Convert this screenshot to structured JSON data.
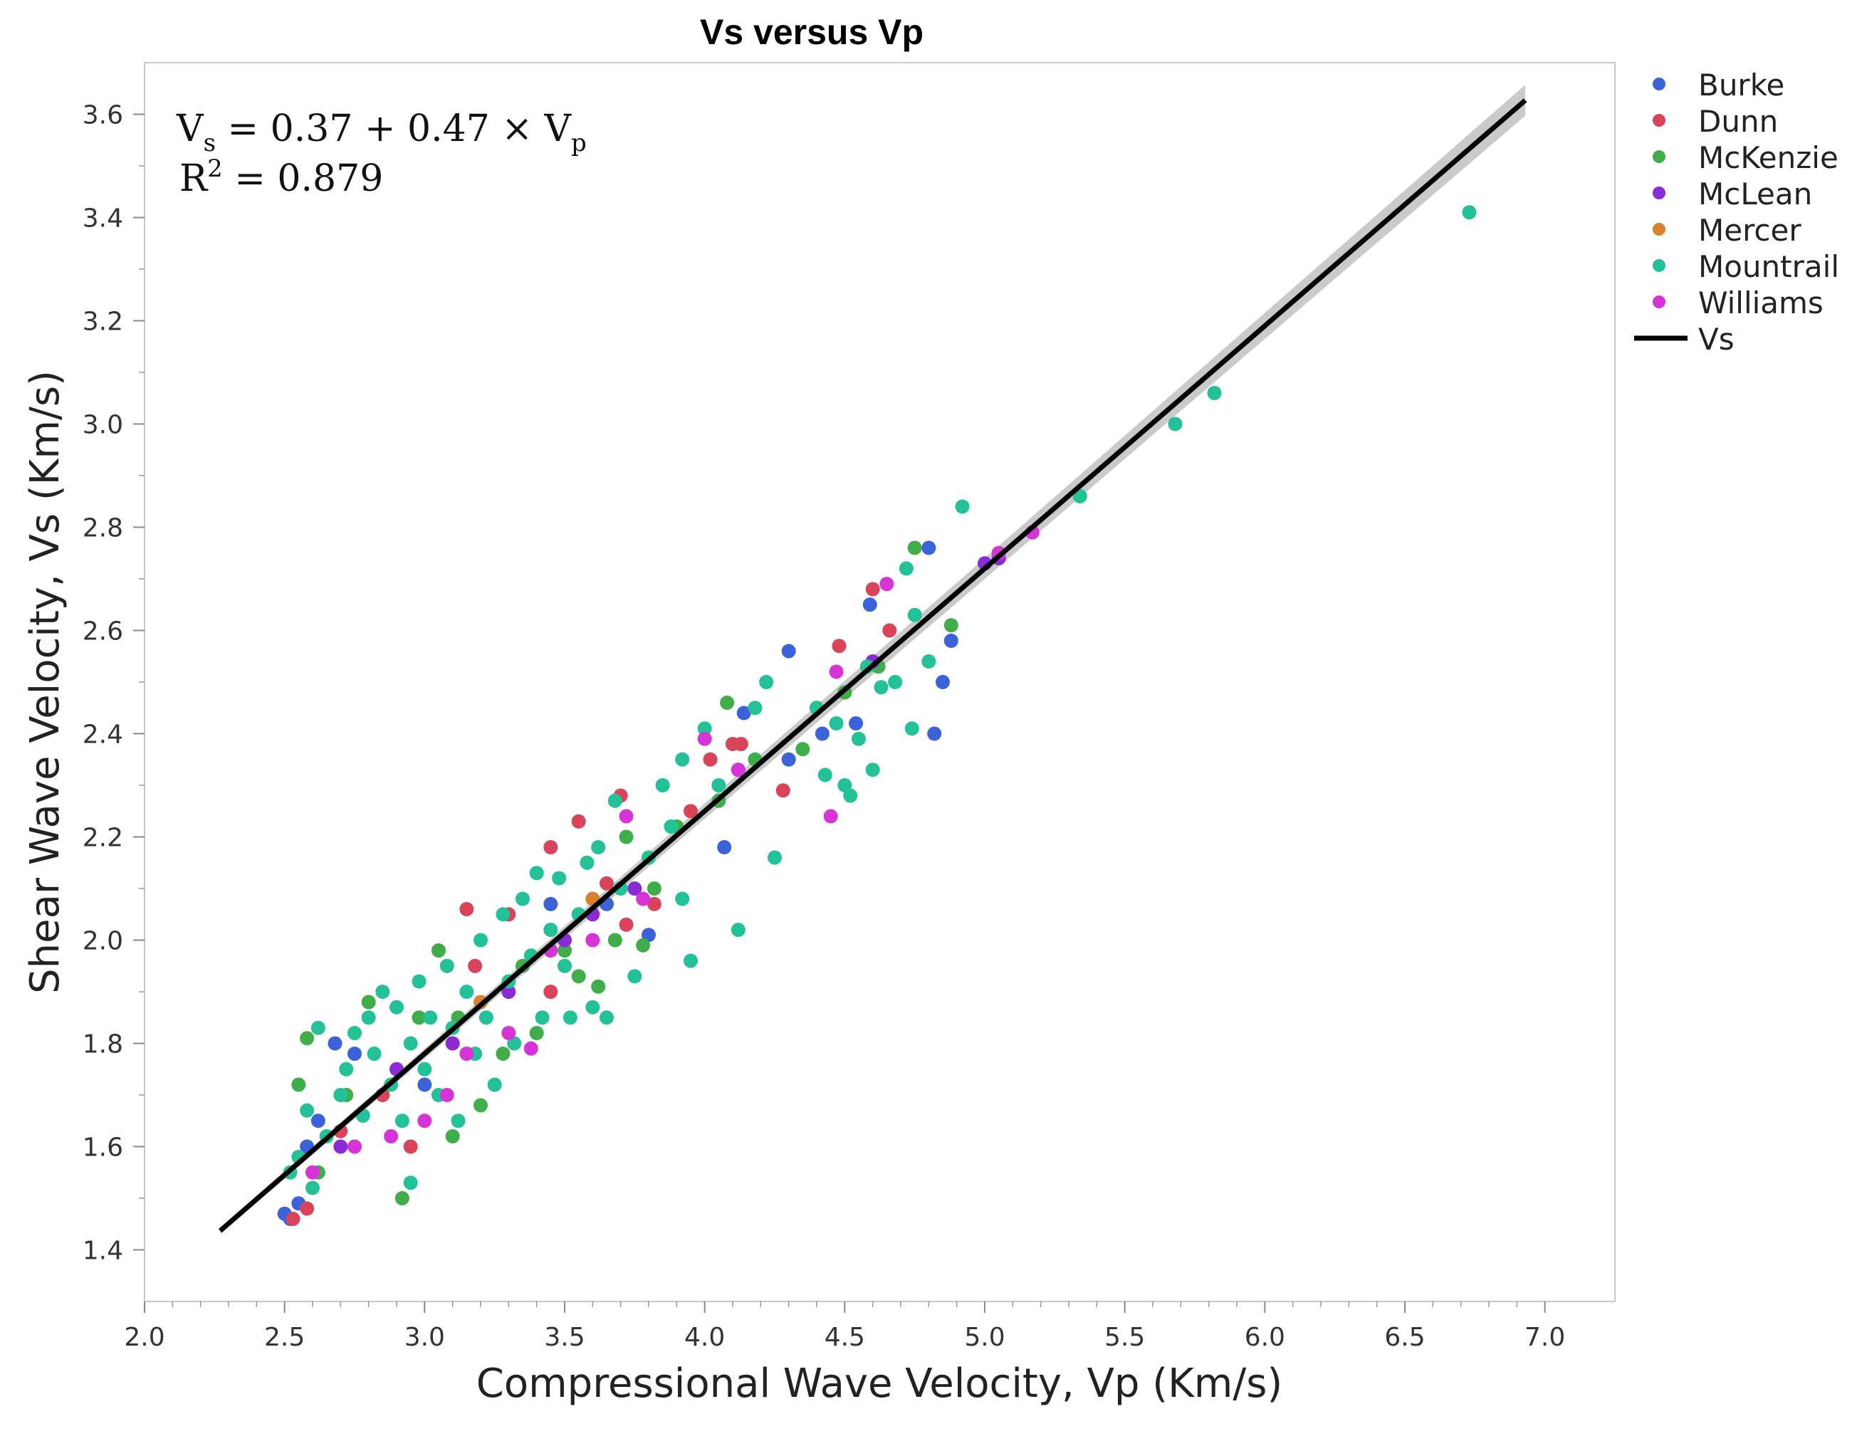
{
  "chart_data": {
    "type": "scatter",
    "title": "Vs versus Vp",
    "xlabel": "Compressional Wave Velocity, Vp (Km/s)",
    "ylabel": "Shear Wave Velocity, Vs (Km/s)",
    "xlim": [
      2.0,
      7.25
    ],
    "ylim": [
      1.3,
      3.7
    ],
    "xticks": [
      "2.0",
      "2.5",
      "3.0",
      "3.5",
      "4.0",
      "4.5",
      "5.0",
      "5.5",
      "6.0",
      "6.5",
      "7.0"
    ],
    "yticks": [
      "1.4",
      "1.6",
      "1.8",
      "2.0",
      "2.2",
      "2.4",
      "2.6",
      "2.8",
      "3.0",
      "3.2",
      "3.4",
      "3.6"
    ],
    "grid": false,
    "legend_position": "right",
    "equation": {
      "line1_base": "V",
      "line1_sub": "s",
      "line1_mid": " = 0.37 + 0.47 × V",
      "line1_sub2": "p",
      "line2_base": "R",
      "line2_sup": "2",
      "line2_rest": " = 0.879"
    },
    "fit": {
      "name": "Vs",
      "intercept": 0.37,
      "slope": 0.47,
      "r2": 0.879,
      "x_range": [
        2.27,
        6.93
      ],
      "color": "#000000",
      "band_color": "#bdbdbd"
    },
    "series": [
      {
        "name": "Burke",
        "color": "#3b62d9",
        "points": [
          [
            2.5,
            1.47
          ],
          [
            2.52,
            1.46
          ],
          [
            2.55,
            1.49
          ],
          [
            2.58,
            1.6
          ],
          [
            2.62,
            1.65
          ],
          [
            2.68,
            1.8
          ],
          [
            2.75,
            1.78
          ],
          [
            3.0,
            1.72
          ],
          [
            3.45,
            2.07
          ],
          [
            3.65,
            2.07
          ],
          [
            3.8,
            2.01
          ],
          [
            4.07,
            2.18
          ],
          [
            4.14,
            2.44
          ],
          [
            4.3,
            2.35
          ],
          [
            4.3,
            2.56
          ],
          [
            4.42,
            2.4
          ],
          [
            4.54,
            2.42
          ],
          [
            4.59,
            2.65
          ],
          [
            4.8,
            2.76
          ],
          [
            4.82,
            2.4
          ],
          [
            4.85,
            2.5
          ],
          [
            4.88,
            2.58
          ]
        ]
      },
      {
        "name": "Dunn",
        "color": "#d9445a",
        "points": [
          [
            2.53,
            1.46
          ],
          [
            2.58,
            1.48
          ],
          [
            2.7,
            1.63
          ],
          [
            2.85,
            1.7
          ],
          [
            2.95,
            1.6
          ],
          [
            3.15,
            2.06
          ],
          [
            3.18,
            1.95
          ],
          [
            3.3,
            2.05
          ],
          [
            3.45,
            1.9
          ],
          [
            3.45,
            2.18
          ],
          [
            3.55,
            2.23
          ],
          [
            3.65,
            2.11
          ],
          [
            3.7,
            2.28
          ],
          [
            3.72,
            2.03
          ],
          [
            3.82,
            2.07
          ],
          [
            3.95,
            2.25
          ],
          [
            4.02,
            2.35
          ],
          [
            4.1,
            2.38
          ],
          [
            4.13,
            2.38
          ],
          [
            4.28,
            2.29
          ],
          [
            4.4,
            2.45
          ],
          [
            4.48,
            2.57
          ],
          [
            4.6,
            2.68
          ],
          [
            4.66,
            2.6
          ]
        ]
      },
      {
        "name": "McKenzie",
        "color": "#3fae49",
        "points": [
          [
            2.55,
            1.72
          ],
          [
            2.58,
            1.81
          ],
          [
            2.62,
            1.55
          ],
          [
            2.72,
            1.7
          ],
          [
            2.8,
            1.88
          ],
          [
            2.92,
            1.5
          ],
          [
            2.98,
            1.85
          ],
          [
            3.05,
            1.98
          ],
          [
            3.1,
            1.62
          ],
          [
            3.12,
            1.85
          ],
          [
            3.2,
            1.68
          ],
          [
            3.28,
            1.78
          ],
          [
            3.35,
            1.95
          ],
          [
            3.4,
            1.82
          ],
          [
            3.5,
            1.98
          ],
          [
            3.55,
            1.93
          ],
          [
            3.62,
            1.91
          ],
          [
            3.68,
            2.0
          ],
          [
            3.72,
            2.2
          ],
          [
            3.78,
            1.99
          ],
          [
            3.82,
            2.1
          ],
          [
            3.9,
            2.22
          ],
          [
            4.05,
            2.27
          ],
          [
            4.08,
            2.46
          ],
          [
            4.18,
            2.35
          ],
          [
            4.35,
            2.37
          ],
          [
            4.5,
            2.48
          ],
          [
            4.62,
            2.53
          ],
          [
            4.75,
            2.76
          ],
          [
            4.88,
            2.61
          ]
        ]
      },
      {
        "name": "McLean",
        "color": "#8b2bd6",
        "points": [
          [
            2.7,
            1.6
          ],
          [
            2.9,
            1.75
          ],
          [
            3.1,
            1.8
          ],
          [
            3.3,
            1.9
          ],
          [
            3.5,
            2.0
          ],
          [
            3.6,
            2.05
          ],
          [
            3.75,
            2.1
          ],
          [
            4.12,
            2.33
          ],
          [
            4.6,
            2.54
          ],
          [
            5.0,
            2.73
          ],
          [
            5.05,
            2.74
          ]
        ]
      },
      {
        "name": "Mercer",
        "color": "#d9822b",
        "points": [
          [
            3.2,
            1.88
          ],
          [
            3.6,
            2.08
          ]
        ]
      },
      {
        "name": "Mountrail",
        "color": "#22c197",
        "points": [
          [
            2.52,
            1.55
          ],
          [
            2.55,
            1.58
          ],
          [
            2.58,
            1.67
          ],
          [
            2.6,
            1.52
          ],
          [
            2.62,
            1.83
          ],
          [
            2.65,
            1.62
          ],
          [
            2.7,
            1.7
          ],
          [
            2.72,
            1.75
          ],
          [
            2.75,
            1.82
          ],
          [
            2.78,
            1.66
          ],
          [
            2.8,
            1.85
          ],
          [
            2.82,
            1.78
          ],
          [
            2.85,
            1.9
          ],
          [
            2.88,
            1.72
          ],
          [
            2.9,
            1.87
          ],
          [
            2.92,
            1.65
          ],
          [
            2.95,
            1.8
          ],
          [
            2.95,
            1.53
          ],
          [
            2.98,
            1.92
          ],
          [
            3.0,
            1.75
          ],
          [
            3.02,
            1.85
          ],
          [
            3.05,
            1.7
          ],
          [
            3.08,
            1.95
          ],
          [
            3.1,
            1.83
          ],
          [
            3.12,
            1.65
          ],
          [
            3.15,
            1.9
          ],
          [
            3.18,
            1.78
          ],
          [
            3.2,
            2.0
          ],
          [
            3.22,
            1.85
          ],
          [
            3.25,
            1.72
          ],
          [
            3.28,
            2.05
          ],
          [
            3.3,
            1.92
          ],
          [
            3.32,
            1.8
          ],
          [
            3.35,
            2.08
          ],
          [
            3.38,
            1.97
          ],
          [
            3.4,
            2.13
          ],
          [
            3.42,
            1.85
          ],
          [
            3.45,
            2.02
          ],
          [
            3.48,
            2.12
          ],
          [
            3.5,
            1.95
          ],
          [
            3.52,
            1.85
          ],
          [
            3.55,
            2.05
          ],
          [
            3.58,
            2.15
          ],
          [
            3.6,
            1.87
          ],
          [
            3.62,
            2.18
          ],
          [
            3.65,
            1.85
          ],
          [
            3.68,
            2.27
          ],
          [
            3.7,
            2.1
          ],
          [
            3.75,
            1.93
          ],
          [
            3.8,
            2.16
          ],
          [
            3.85,
            2.3
          ],
          [
            3.88,
            2.22
          ],
          [
            3.92,
            2.35
          ],
          [
            3.92,
            2.08
          ],
          [
            3.95,
            1.96
          ],
          [
            4.0,
            2.41
          ],
          [
            4.05,
            2.3
          ],
          [
            4.12,
            2.02
          ],
          [
            4.18,
            2.45
          ],
          [
            4.22,
            2.5
          ],
          [
            4.25,
            2.16
          ],
          [
            4.4,
            2.45
          ],
          [
            4.43,
            2.32
          ],
          [
            4.47,
            2.42
          ],
          [
            4.5,
            2.3
          ],
          [
            4.52,
            2.28
          ],
          [
            4.55,
            2.39
          ],
          [
            4.58,
            2.53
          ],
          [
            4.6,
            2.33
          ],
          [
            4.63,
            2.49
          ],
          [
            4.68,
            2.5
          ],
          [
            4.72,
            2.72
          ],
          [
            4.74,
            2.41
          ],
          [
            4.75,
            2.63
          ],
          [
            4.8,
            2.54
          ],
          [
            4.92,
            2.84
          ],
          [
            5.34,
            2.86
          ],
          [
            5.68,
            3.0
          ],
          [
            5.82,
            3.06
          ],
          [
            6.73,
            3.41
          ]
        ]
      },
      {
        "name": "Williams",
        "color": "#d634d6",
        "points": [
          [
            2.6,
            1.55
          ],
          [
            2.75,
            1.6
          ],
          [
            2.88,
            1.62
          ],
          [
            3.0,
            1.65
          ],
          [
            3.08,
            1.7
          ],
          [
            3.15,
            1.78
          ],
          [
            3.3,
            1.82
          ],
          [
            3.38,
            1.79
          ],
          [
            3.45,
            1.98
          ],
          [
            3.6,
            2.0
          ],
          [
            3.72,
            2.24
          ],
          [
            3.78,
            2.08
          ],
          [
            4.0,
            2.39
          ],
          [
            4.12,
            2.33
          ],
          [
            4.45,
            2.24
          ],
          [
            4.47,
            2.52
          ],
          [
            4.65,
            2.69
          ],
          [
            5.05,
            2.75
          ],
          [
            5.17,
            2.79
          ]
        ]
      }
    ]
  }
}
